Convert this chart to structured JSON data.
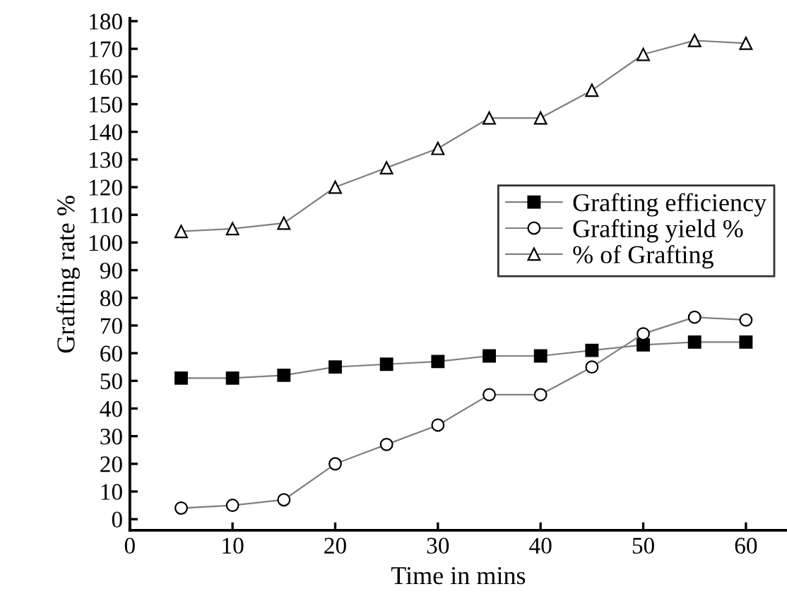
{
  "chart_data": {
    "type": "line",
    "xlabel": "Time in mins",
    "ylabel": "Grafting rate %",
    "x": [
      5,
      10,
      15,
      20,
      25,
      30,
      35,
      40,
      45,
      50,
      55,
      60
    ],
    "series": [
      {
        "name": "Grafting efficiency",
        "color": "#000000",
        "marker": "square",
        "values": [
          51,
          51,
          52,
          55,
          56,
          57,
          59,
          59,
          61,
          63,
          64,
          64
        ]
      },
      {
        "name": "Grafting yield %",
        "color": "#000000",
        "marker": "circle",
        "values": [
          4,
          5,
          7,
          20,
          27,
          34,
          45,
          45,
          55,
          67,
          73,
          72
        ]
      },
      {
        "name": "% of Grafting",
        "color": "#000000",
        "marker": "triangle",
        "values": [
          104,
          105,
          107,
          120,
          127,
          134,
          145,
          145,
          155,
          168,
          173,
          172
        ]
      }
    ],
    "xlim": [
      0,
      64
    ],
    "xticks": [
      0,
      10,
      20,
      30,
      40,
      50,
      60
    ],
    "ylim": [
      -4,
      181
    ],
    "yticks": [
      0,
      10,
      20,
      30,
      40,
      50,
      60,
      70,
      80,
      90,
      100,
      110,
      120,
      130,
      140,
      150,
      160,
      170,
      180
    ],
    "grid": false,
    "legend": "right",
    "line_style": "solid"
  }
}
